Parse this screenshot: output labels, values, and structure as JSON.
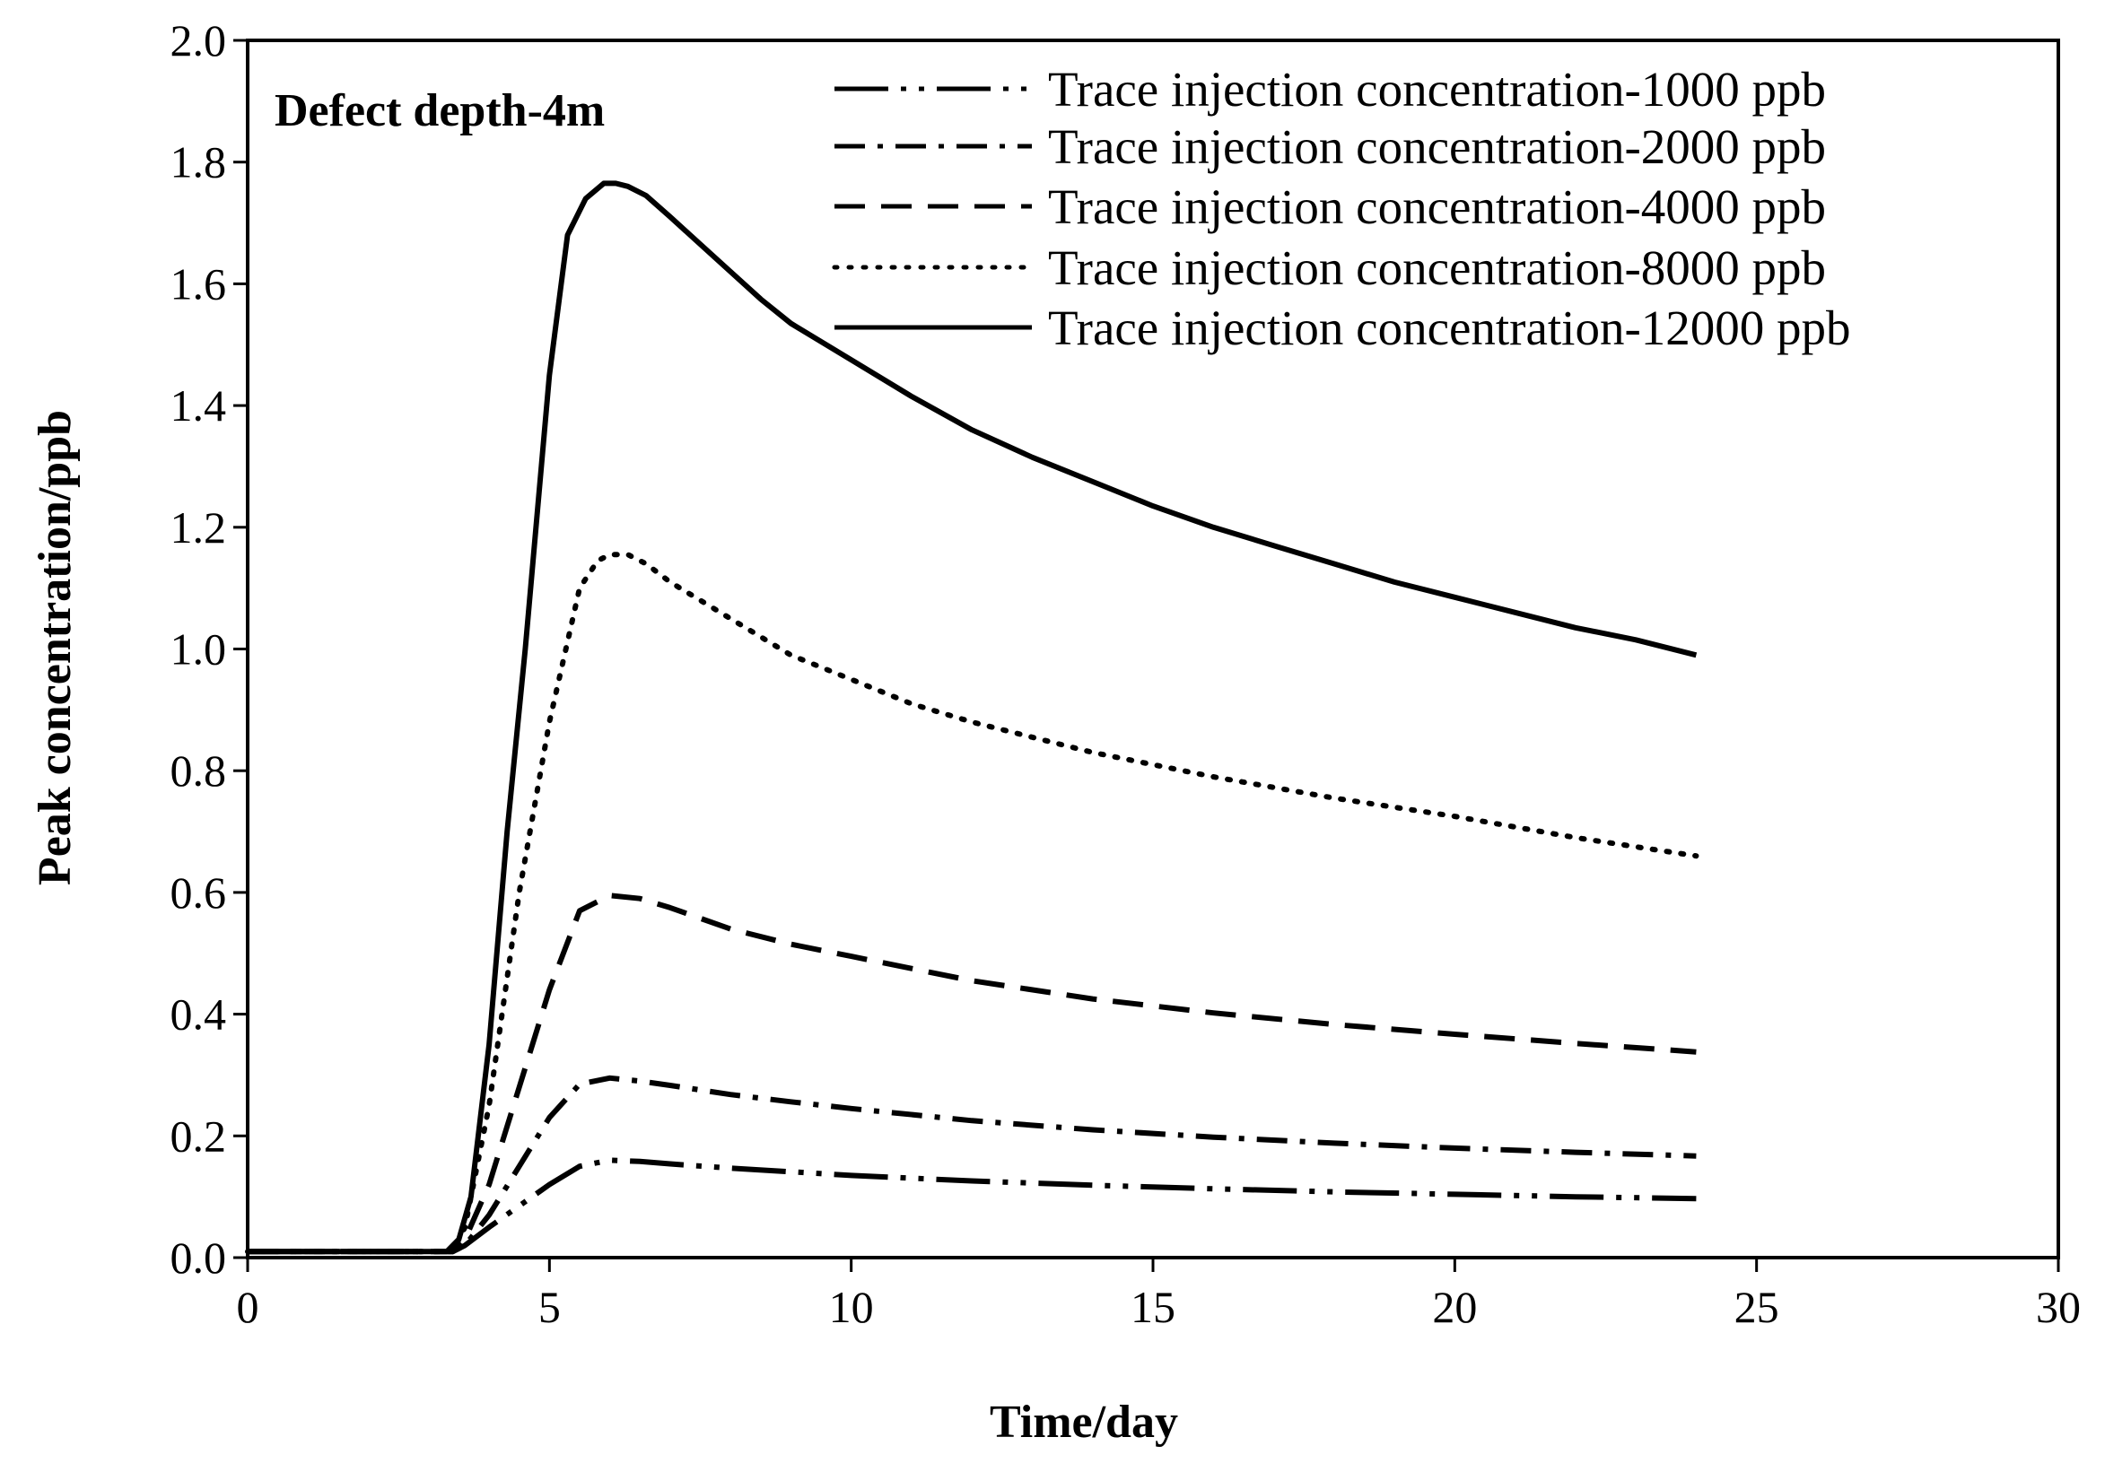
{
  "chart_data": {
    "type": "line",
    "title": "",
    "annotation": "Defect depth-4m",
    "xlabel": "Time/day",
    "ylabel": "Peak concentration/ppb",
    "xlim": [
      0,
      30
    ],
    "ylim": [
      0,
      2.0
    ],
    "x_ticks": [
      0,
      5,
      10,
      15,
      20,
      25,
      30
    ],
    "y_ticks": [
      0.0,
      0.2,
      0.4,
      0.6,
      0.8,
      1.0,
      1.2,
      1.4,
      1.6,
      1.8,
      2.0
    ],
    "x_tick_labels": [
      "0",
      "5",
      "10",
      "15",
      "20",
      "25",
      "30"
    ],
    "y_tick_labels": [
      "0.0",
      "0.2",
      "0.4",
      "0.6",
      "0.8",
      "1.0",
      "1.2",
      "1.4",
      "1.6",
      "1.8",
      "2.0"
    ],
    "grid": false,
    "legend_position": "top-right",
    "series": [
      {
        "name": "Trace injection concentration-1000 ppb",
        "dash": "long-dash-dot-dot",
        "x": [
          0,
          3.4,
          3.6,
          4.0,
          4.5,
          5.0,
          5.5,
          6.0,
          6.5,
          7,
          8,
          9,
          10,
          12,
          14,
          16,
          18,
          20,
          22,
          24
        ],
        "y": [
          0.01,
          0.01,
          0.02,
          0.05,
          0.085,
          0.12,
          0.15,
          0.16,
          0.158,
          0.154,
          0.147,
          0.141,
          0.135,
          0.126,
          0.119,
          0.113,
          0.108,
          0.104,
          0.1,
          0.097
        ]
      },
      {
        "name": "Trace injection concentration-2000 ppb",
        "dash": "dash-dot",
        "x": [
          0,
          3.4,
          3.6,
          4.0,
          4.5,
          5.0,
          5.5,
          6.0,
          6.5,
          7,
          8,
          9,
          10,
          12,
          14,
          16,
          18,
          20,
          22,
          24
        ],
        "y": [
          0.01,
          0.01,
          0.02,
          0.07,
          0.15,
          0.23,
          0.285,
          0.295,
          0.29,
          0.283,
          0.268,
          0.256,
          0.245,
          0.225,
          0.21,
          0.198,
          0.188,
          0.18,
          0.173,
          0.167
        ]
      },
      {
        "name": "Trace injection concentration-4000 ppb",
        "dash": "dash",
        "x": [
          0,
          3.4,
          3.6,
          4.0,
          4.5,
          5.0,
          5.5,
          6.0,
          6.5,
          7,
          8,
          9,
          10,
          12,
          14,
          16,
          18,
          20,
          22,
          24
        ],
        "y": [
          0.01,
          0.01,
          0.03,
          0.12,
          0.28,
          0.44,
          0.57,
          0.595,
          0.59,
          0.575,
          0.54,
          0.515,
          0.495,
          0.455,
          0.425,
          0.402,
          0.383,
          0.367,
          0.352,
          0.338
        ]
      },
      {
        "name": "Trace injection concentration-8000 ppb",
        "dash": "dot",
        "x": [
          0,
          3.4,
          3.6,
          4.0,
          4.5,
          5.0,
          5.5,
          5.8,
          6.0,
          6.3,
          6.6,
          7,
          8,
          9,
          10,
          11,
          12,
          13,
          14,
          15,
          16,
          18,
          20,
          22,
          24
        ],
        "y": [
          0.01,
          0.01,
          0.05,
          0.25,
          0.6,
          0.88,
          1.1,
          1.145,
          1.155,
          1.155,
          1.14,
          1.11,
          1.05,
          0.99,
          0.95,
          0.91,
          0.88,
          0.855,
          0.83,
          0.81,
          0.79,
          0.755,
          0.725,
          0.69,
          0.66
        ]
      },
      {
        "name": "Trace injection concentration-12000 ppb",
        "dash": "solid",
        "x": [
          0,
          3.3,
          3.5,
          3.7,
          4.0,
          4.3,
          4.6,
          5.0,
          5.3,
          5.6,
          5.9,
          6.1,
          6.3,
          6.6,
          7,
          7.5,
          8,
          8.5,
          9,
          10,
          11,
          12,
          13,
          14,
          15,
          16,
          17,
          18,
          19,
          20,
          21,
          22,
          23,
          24
        ],
        "y": [
          0.01,
          0.01,
          0.03,
          0.1,
          0.35,
          0.7,
          1.0,
          1.45,
          1.68,
          1.74,
          1.765,
          1.765,
          1.76,
          1.745,
          1.71,
          1.665,
          1.62,
          1.575,
          1.535,
          1.475,
          1.415,
          1.36,
          1.315,
          1.275,
          1.235,
          1.2,
          1.17,
          1.14,
          1.11,
          1.085,
          1.06,
          1.035,
          1.015,
          0.99
        ]
      }
    ]
  }
}
